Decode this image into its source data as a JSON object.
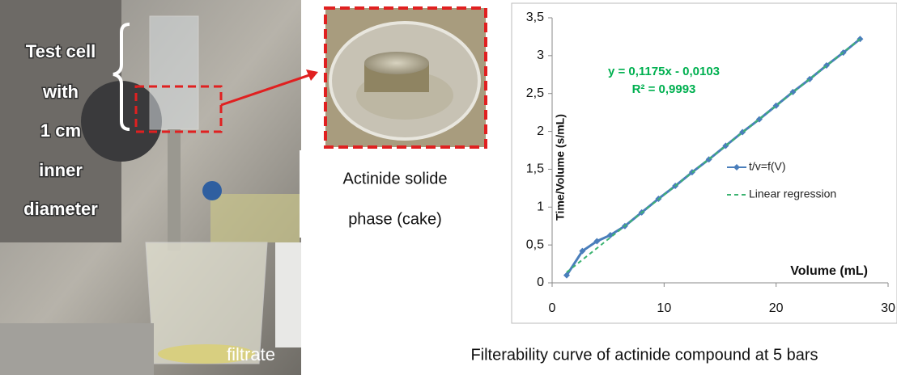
{
  "photo": {
    "cell_labels": [
      "Test cell",
      "with",
      "1 cm",
      "inner",
      "diameter"
    ],
    "beaker_label": "filtrate",
    "inset_caption": [
      "Actinide solide",
      "phase (cake)"
    ]
  },
  "caption": "Filterability curve of actinide compound at 5 bars",
  "chart_data": {
    "type": "line",
    "x_label": "Volume (mL)",
    "y_label": "Time/Volume (s/mL)",
    "annotations": [
      "y = 0,1175x - 0,0103",
      "R² = 0,9993"
    ],
    "annotation_color": "#00b050",
    "xlim": [
      0,
      30
    ],
    "xticks": [
      0,
      10,
      20,
      30
    ],
    "ylim": [
      0,
      3.5
    ],
    "yticks": [
      0,
      {
        "value": 0.5,
        "label": "0,5"
      },
      1,
      {
        "value": 1.5,
        "label": "1,5"
      },
      2,
      {
        "value": 2.5,
        "label": "2,5"
      },
      3,
      {
        "value": 3.5,
        "label": "3,5"
      }
    ],
    "grid": false,
    "legend": "center-right",
    "series": [
      {
        "name": "t/v=f(V)",
        "color": "#4a7ebb",
        "style": "solid",
        "markers": true,
        "x": [
          1.3,
          2.7,
          4.0,
          5.2,
          6.5,
          8,
          9.5,
          11,
          12.5,
          14,
          15.5,
          17,
          18.5,
          20,
          21.5,
          23,
          24.5,
          26,
          27.5
        ],
        "values": [
          0.1,
          0.42,
          0.55,
          0.63,
          0.75,
          0.93,
          1.11,
          1.28,
          1.46,
          1.63,
          1.81,
          1.99,
          2.16,
          2.34,
          2.52,
          2.69,
          2.87,
          3.04,
          3.22
        ]
      },
      {
        "name": "Linear regression",
        "color": "#3cb371",
        "style": "dashed",
        "markers": false,
        "x": [
          1.3,
          27.5
        ],
        "values": [
          0.14,
          3.22
        ]
      }
    ]
  }
}
